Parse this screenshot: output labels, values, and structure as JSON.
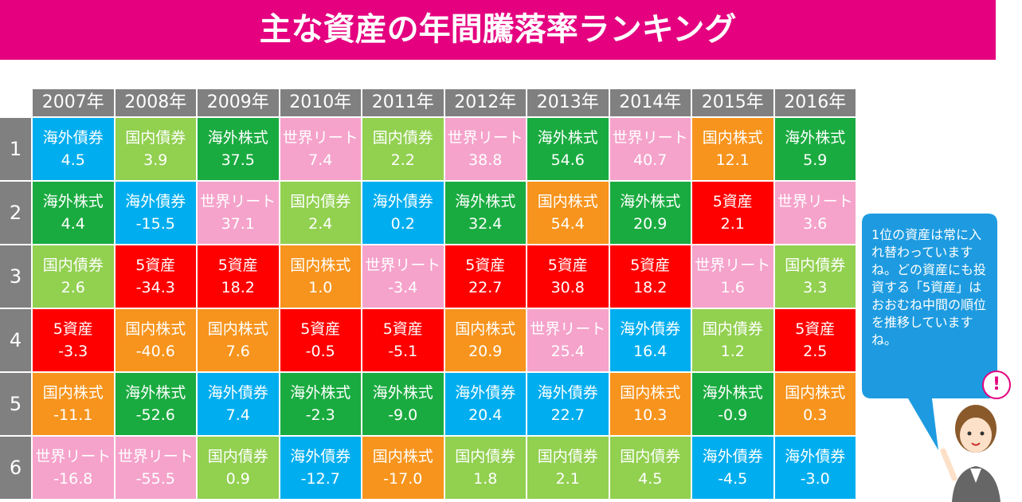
{
  "header": {
    "title": "主な資産の年間騰落率ランキング"
  },
  "asset_colors": {
    "海外債券": "#00aeef",
    "国内債券": "#92d050",
    "海外株式": "#1aab40",
    "世界リート": "#f5a3cb",
    "国内株式": "#f7941d",
    "5資産": "#ff0000"
  },
  "table": {
    "years": [
      "2007年",
      "2008年",
      "2009年",
      "2010年",
      "2011年",
      "2012年",
      "2013年",
      "2014年",
      "2015年",
      "2016年"
    ],
    "rows": [
      {
        "rank": "1",
        "cells": [
          {
            "asset": "海外債券",
            "value": "4.5"
          },
          {
            "asset": "国内債券",
            "value": "3.9"
          },
          {
            "asset": "海外株式",
            "value": "37.5"
          },
          {
            "asset": "世界リート",
            "value": "7.4"
          },
          {
            "asset": "国内債券",
            "value": "2.2"
          },
          {
            "asset": "世界リート",
            "value": "38.8"
          },
          {
            "asset": "海外株式",
            "value": "54.6"
          },
          {
            "asset": "世界リート",
            "value": "40.7"
          },
          {
            "asset": "国内株式",
            "value": "12.1"
          },
          {
            "asset": "海外株式",
            "value": "5.9"
          }
        ]
      },
      {
        "rank": "2",
        "cells": [
          {
            "asset": "海外株式",
            "value": "4.4"
          },
          {
            "asset": "海外債券",
            "value": "-15.5"
          },
          {
            "asset": "世界リート",
            "value": "37.1"
          },
          {
            "asset": "国内債券",
            "value": "2.4"
          },
          {
            "asset": "海外債券",
            "value": "0.2"
          },
          {
            "asset": "海外株式",
            "value": "32.4"
          },
          {
            "asset": "国内株式",
            "value": "54.4"
          },
          {
            "asset": "海外株式",
            "value": "20.9"
          },
          {
            "asset": "5資産",
            "value": "2.1"
          },
          {
            "asset": "世界リート",
            "value": "3.6"
          }
        ]
      },
      {
        "rank": "3",
        "cells": [
          {
            "asset": "国内債券",
            "value": "2.6"
          },
          {
            "asset": "5資産",
            "value": "-34.3"
          },
          {
            "asset": "5資産",
            "value": "18.2"
          },
          {
            "asset": "国内株式",
            "value": "1.0"
          },
          {
            "asset": "世界リート",
            "value": "-3.4"
          },
          {
            "asset": "5資産",
            "value": "22.7"
          },
          {
            "asset": "5資産",
            "value": "30.8"
          },
          {
            "asset": "5資産",
            "value": "18.2"
          },
          {
            "asset": "世界リート",
            "value": "1.6"
          },
          {
            "asset": "国内債券",
            "value": "3.3"
          }
        ]
      },
      {
        "rank": "4",
        "cells": [
          {
            "asset": "5資産",
            "value": "-3.3"
          },
          {
            "asset": "国内株式",
            "value": "-40.6"
          },
          {
            "asset": "国内株式",
            "value": "7.6"
          },
          {
            "asset": "5資産",
            "value": "-0.5"
          },
          {
            "asset": "5資産",
            "value": "-5.1"
          },
          {
            "asset": "国内株式",
            "value": "20.9"
          },
          {
            "asset": "世界リート",
            "value": "25.4"
          },
          {
            "asset": "海外債券",
            "value": "16.4"
          },
          {
            "asset": "国内債券",
            "value": "1.2"
          },
          {
            "asset": "5資産",
            "value": "2.5"
          }
        ]
      },
      {
        "rank": "5",
        "cells": [
          {
            "asset": "国内株式",
            "value": "-11.1"
          },
          {
            "asset": "海外株式",
            "value": "-52.6"
          },
          {
            "asset": "海外債券",
            "value": "7.4"
          },
          {
            "asset": "海外株式",
            "value": "-2.3"
          },
          {
            "asset": "海外株式",
            "value": "-9.0"
          },
          {
            "asset": "海外債券",
            "value": "20.4"
          },
          {
            "asset": "海外債券",
            "value": "22.7"
          },
          {
            "asset": "国内株式",
            "value": "10.3"
          },
          {
            "asset": "海外株式",
            "value": "-0.9"
          },
          {
            "asset": "国内株式",
            "value": "0.3"
          }
        ]
      },
      {
        "rank": "6",
        "cells": [
          {
            "asset": "世界リート",
            "value": "-16.8"
          },
          {
            "asset": "世界リート",
            "value": "-55.5"
          },
          {
            "asset": "国内債券",
            "value": "0.9"
          },
          {
            "asset": "海外債券",
            "value": "-12.7"
          },
          {
            "asset": "国内株式",
            "value": "-17.0"
          },
          {
            "asset": "国内債券",
            "value": "1.8"
          },
          {
            "asset": "国内債券",
            "value": "2.1"
          },
          {
            "asset": "国内債券",
            "value": "4.5"
          },
          {
            "asset": "海外債券",
            "value": "-4.5"
          },
          {
            "asset": "海外債券",
            "value": "-3.0"
          }
        ]
      }
    ]
  },
  "bubble": {
    "text": "1位の資産は常に入れ替わっていますね。どの資産にも投資する「5資産」はおおむね中間の順位を推移していますね。",
    "exclaim": "!"
  }
}
